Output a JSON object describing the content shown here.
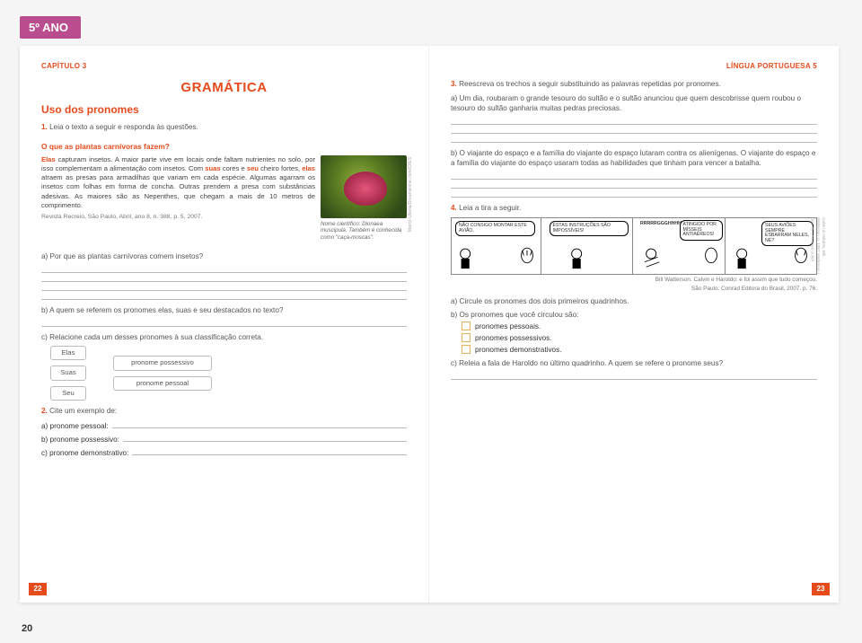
{
  "grade_badge": "5º ANO",
  "left": {
    "chapter": "CAPÍTULO 3",
    "section_title": "GRAMÁTICA",
    "subsection": "Uso dos pronomes",
    "q1": {
      "num": "1.",
      "text": "Leia o texto a seguir e responda às questões."
    },
    "box": {
      "title": "O que as plantas carnívoras fazem?",
      "body_html": "<b>Elas</b> capturam insetos. A maior parte vive em locais onde faltam nutrientes no solo, por isso complementam a alimentação com insetos. Com <b>suas</b> cores e <b>seu</b> cheiro fortes, <b>elas</b> atraem as presas para armadilhas que variam em cada espécie. Algumas agarram os insetos com folhas em forma de concha. Outras prendem a presa com substâncias adesivas. As maiores são as Nepenthes, que chegam a mais de 10 metros de comprimento.",
      "cite": "Revista Recreio, São Paulo, Abril, ano 8, n. 388, p. 5, 2007.",
      "caption": "Nome científico: Dionaea muscipula. Também é conhecida como \"caça-moscas\".",
      "img_credit": "Marco Uliana/Dreamstime.com/ID/ES"
    },
    "q1a": "a) Por que as plantas carnívoras comem insetos?",
    "q1b": "b) A quem se referem os pronomes elas, suas e seu destacados no texto?",
    "q1c": "c) Relacione cada um desses pronomes à sua classificação correta.",
    "match": {
      "left": [
        "Elas",
        "Suas",
        "Seu"
      ],
      "right": [
        "pronome possessivo",
        "pronome pessoal"
      ]
    },
    "q2": {
      "num": "2.",
      "text": "Cite um exemplo de:"
    },
    "q2a": "a) pronome pessoal:",
    "q2b": "b) pronome possessivo:",
    "q2c": "c) pronome demonstrativo:",
    "page_number": "22"
  },
  "right": {
    "subject": "LÍNGUA PORTUGUESA 5",
    "q3": {
      "num": "3.",
      "text": "Reescreva os trechos a seguir substituindo as palavras repetidas por pronomes."
    },
    "q3a": "a) Um dia, roubaram o grande tesouro do sultão e o sultão anunciou que quem descobrisse quem roubou o tesouro do sultão ganharia muitas pedras preciosas.",
    "q3b": "b) O viajante do espaço e a família do viajante do espaço lutaram contra os alienígenas. O viajante do espaço e a família do viajante do espaço usaram todas as habilidades que tinham para vencer a batalha.",
    "q4": {
      "num": "4.",
      "text": "Leia a tira a seguir."
    },
    "comic": {
      "p1": "NÃO CONSIGO MONTAR ESTE AVIÃO.",
      "p2": "ESTAS INSTRUÇÕES SÃO IMPOSSÍVEIS!",
      "p3a": "RRRRRGGGHHHH!!",
      "p3b": "ATINGIDO POR MÍSSEIS ANTIAÉREOS!",
      "p4": "SEUS AVIÕES SEMPRE ESBARRAM NELES, NÉ?",
      "credit_side": "Calvin & Hobbes, Bill Watterson © 1987 Watterson / Dist. by Universal Uclick"
    },
    "attrib1": "Bill Watterson. Calvin e Haroldo: e foi assim que tudo começou.",
    "attrib2": "São Paulo: Conrad Editora do Brasil, 2007. p. 76.",
    "q4a": "a) Circule os pronomes dos dois primeiros quadrinhos.",
    "q4b": "b) Os pronomes que você circulou são:",
    "opts": [
      "pronomes pessoais.",
      "pronomes possessivos.",
      "pronomes demonstrativos."
    ],
    "q4c": "c) Releia a fala de Haroldo no último quadrinho. A quem se refere o pronome seus?",
    "page_number": "23"
  },
  "outer_page": "20"
}
